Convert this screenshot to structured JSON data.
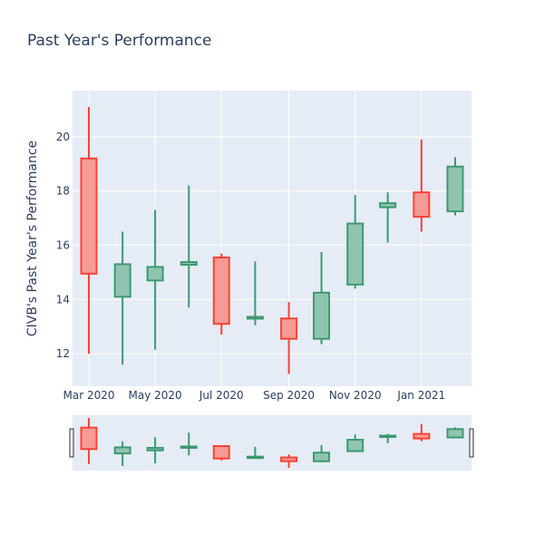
{
  "chart_data": {
    "type": "candlestick",
    "title": "Past Year's Performance",
    "xlabel": "",
    "ylabel": "CIVB's Past Year's Performance",
    "x_ticks": [
      "Mar 2020",
      "May 2020",
      "Jul 2020",
      "Sep 2020",
      "Nov 2020",
      "Jan 2021"
    ],
    "y_ticks": [
      12,
      14,
      16,
      18,
      20
    ],
    "ylim": [
      10.8,
      21.7
    ],
    "grid": true,
    "legend": "none",
    "has_range_slider": true,
    "colors": {
      "increasing_line": "#3d9970",
      "increasing_fill": "#91c4ae",
      "decreasing_line": "#ff4136",
      "decreasing_fill": "#f59b96",
      "plot_bg": "#e5ecf6",
      "grid": "#ffffff",
      "text": "#2a3f5f"
    },
    "candles": [
      {
        "date": "2020-03-01",
        "open": 19.2,
        "high": 21.1,
        "low": 12.0,
        "close": 14.95
      },
      {
        "date": "2020-04-01",
        "open": 14.1,
        "high": 16.5,
        "low": 11.6,
        "close": 15.3
      },
      {
        "date": "2020-05-01",
        "open": 14.7,
        "high": 17.3,
        "low": 12.15,
        "close": 15.2
      },
      {
        "date": "2020-06-01",
        "open": 15.28,
        "high": 18.2,
        "low": 13.7,
        "close": 15.38
      },
      {
        "date": "2020-07-01",
        "open": 15.55,
        "high": 15.7,
        "low": 12.7,
        "close": 13.1
      },
      {
        "date": "2020-08-01",
        "open": 13.3,
        "high": 15.4,
        "low": 13.05,
        "close": 13.35
      },
      {
        "date": "2020-09-01",
        "open": 13.3,
        "high": 13.9,
        "low": 11.25,
        "close": 12.55
      },
      {
        "date": "2020-10-01",
        "open": 12.55,
        "high": 15.75,
        "low": 12.35,
        "close": 14.25
      },
      {
        "date": "2020-11-01",
        "open": 14.55,
        "high": 17.85,
        "low": 14.4,
        "close": 16.8
      },
      {
        "date": "2020-12-01",
        "open": 17.4,
        "high": 17.95,
        "low": 16.1,
        "close": 17.55
      },
      {
        "date": "2021-01-01",
        "open": 17.95,
        "high": 19.9,
        "low": 16.5,
        "close": 17.05
      },
      {
        "date": "2021-02-01",
        "open": 17.25,
        "high": 19.25,
        "low": 17.1,
        "close": 18.9
      }
    ]
  }
}
